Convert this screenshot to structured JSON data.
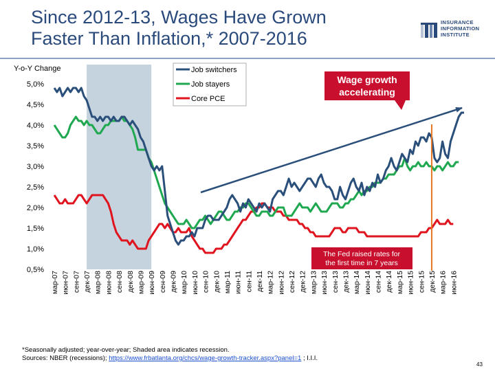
{
  "title_line1": "Since 2012-13, Wages Have Grown",
  "title_line2": "Faster Than Inflation,* 2007-2016",
  "logo": {
    "line1": "INSURANCE",
    "line2": "INFORMATION",
    "line3": "INSTITUTE",
    "color": "#2a4a7c"
  },
  "callouts": {
    "wage": {
      "line1": "Wage growth",
      "line2": "accelerating",
      "bg": "#c8102e"
    },
    "fed": {
      "line1": "The Fed raised rates for",
      "line2": "the first time in 7 years",
      "bg": "#c8102e"
    }
  },
  "footnote": {
    "text": "*Seasonally adjusted; year-over-year; Shaded area indicates recession.",
    "sources_prefix": "Sources: NBER (recessions); ",
    "link": "https://www.frbatlanta.org/chcs/wage-growth-tracker.aspx?panel=1",
    "sources_suffix": " ; I.I.I."
  },
  "page_number": "43",
  "chart_data": {
    "type": "line",
    "ylabel": "Y-o-Y Change",
    "ylim": [
      0.5,
      5.0
    ],
    "yticks": [
      0.5,
      1.0,
      1.5,
      2.0,
      2.5,
      3.0,
      3.5,
      4.0,
      4.5,
      5.0
    ],
    "ytick_labels": [
      "0,5%",
      "1,0%",
      "1,5%",
      "2,0%",
      "2,5%",
      "3,0%",
      "3,5%",
      "4,0%",
      "4,5%",
      "5,0%"
    ],
    "x_start": "мар-07",
    "x_end": "июн-16",
    "x_tick_labels": [
      "мар-07",
      "июн-07",
      "сен-07",
      "дек-07",
      "мар-08",
      "июн-08",
      "сен-08",
      "дек-08",
      "мар-09",
      "июн-09",
      "сен-09",
      "дек-09",
      "мар-10",
      "июн-10",
      "сен-10",
      "дек-10",
      "мар-11",
      "июн-11",
      "сен-11",
      "дек-11",
      "мар-12",
      "июн-12",
      "сен-12",
      "дек-12",
      "мар-13",
      "июн-13",
      "сен-13",
      "дек-13",
      "мар-14",
      "июн-14",
      "сен-14",
      "дек-14",
      "мар-15",
      "июн-15",
      "сен-15",
      "дек-15",
      "мар-16",
      "июн-16"
    ],
    "recession": {
      "start": "дек-07",
      "end": "июн-09",
      "color": "#c5d3de"
    },
    "legend_position": "top-center",
    "series": [
      {
        "name": "Job switchers",
        "color": "#2a4f7a",
        "values": [
          4.9,
          4.8,
          4.9,
          4.7,
          4.8,
          4.9,
          4.8,
          4.9,
          4.9,
          4.8,
          4.9,
          4.7,
          4.6,
          4.4,
          4.2,
          4.2,
          4.1,
          4.2,
          4.1,
          4.2,
          4.2,
          4.1,
          4.2,
          4.1,
          4.1,
          4.2,
          4.2,
          4.1,
          4.0,
          4.1,
          4.0,
          3.9,
          3.7,
          3.6,
          3.4,
          3.2,
          3.0,
          2.9,
          3.0,
          2.9,
          3.0,
          2.4,
          1.8,
          1.6,
          1.4,
          1.2,
          1.1,
          1.2,
          1.2,
          1.3,
          1.3,
          1.4,
          1.3,
          1.5,
          1.5,
          1.5,
          1.7,
          1.8,
          1.8,
          1.7,
          1.7,
          1.7,
          1.8,
          1.9,
          2.0,
          2.2,
          2.3,
          2.2,
          2.1,
          1.9,
          2.1,
          2.0,
          2.2,
          2.1,
          2.0,
          1.9,
          2.1,
          2.0,
          2.1,
          2.0,
          1.9,
          2.2,
          2.3,
          2.4,
          2.4,
          2.3,
          2.5,
          2.7,
          2.5,
          2.6,
          2.5,
          2.4,
          2.5,
          2.6,
          2.7,
          2.7,
          2.6,
          2.5,
          2.7,
          2.8,
          2.6,
          2.5,
          2.5,
          2.4,
          2.2,
          2.2,
          2.5,
          2.3,
          2.2,
          2.4,
          2.6,
          2.7,
          2.5,
          2.4,
          2.6,
          2.3,
          2.5,
          2.4,
          2.6,
          2.5,
          2.8,
          2.6,
          2.7,
          2.9,
          3.0,
          3.2,
          3.0,
          2.9,
          3.1,
          3.3,
          3.2,
          3.1,
          3.4,
          3.3,
          3.6,
          3.5,
          3.7,
          3.7,
          3.6,
          3.8,
          3.7,
          3.2,
          3.1,
          3.2,
          3.6,
          3.3,
          3.2,
          3.6,
          3.8,
          4.0,
          4.2,
          4.3,
          4.3
        ]
      },
      {
        "name": "Job stayers",
        "color": "#1fa84f",
        "values": [
          4.0,
          3.9,
          3.8,
          3.7,
          3.7,
          3.8,
          4.0,
          4.1,
          4.2,
          4.1,
          4.1,
          4.0,
          4.1,
          4.0,
          4.0,
          3.9,
          3.8,
          3.8,
          3.9,
          4.0,
          4.0,
          4.1,
          4.1,
          4.1,
          4.1,
          4.2,
          4.1,
          4.1,
          4.0,
          3.9,
          3.7,
          3.4,
          3.4,
          3.4,
          3.4,
          3.2,
          3.1,
          2.9,
          2.7,
          2.5,
          2.3,
          2.1,
          2.0,
          1.9,
          1.8,
          1.7,
          1.6,
          1.6,
          1.6,
          1.7,
          1.6,
          1.5,
          1.5,
          1.6,
          1.7,
          1.7,
          1.8,
          1.7,
          1.6,
          1.7,
          1.8,
          1.9,
          1.9,
          1.8,
          1.7,
          1.7,
          1.8,
          1.9,
          1.9,
          2.0,
          2.0,
          2.1,
          2.1,
          2.0,
          1.9,
          1.8,
          1.8,
          1.9,
          1.9,
          1.9,
          1.8,
          1.8,
          1.9,
          2.0,
          2.0,
          2.0,
          1.8,
          1.8,
          1.8,
          1.9,
          2.0,
          2.1,
          2.0,
          2.0,
          2.0,
          1.9,
          2.0,
          2.1,
          2.0,
          1.9,
          1.9,
          1.9,
          2.0,
          2.1,
          2.1,
          2.1,
          2.0,
          2.0,
          2.1,
          2.1,
          2.2,
          2.2,
          2.3,
          2.4,
          2.3,
          2.4,
          2.4,
          2.5,
          2.5,
          2.6,
          2.6,
          2.6,
          2.7,
          2.7,
          2.8,
          2.8,
          2.8,
          2.9,
          3.0,
          3.0,
          3.2,
          3.0,
          2.9,
          3.0,
          3.0,
          3.1,
          3.0,
          3.0,
          3.1,
          3.0,
          3.0,
          2.9,
          3.0,
          3.0,
          2.9,
          3.0,
          3.1,
          3.0,
          3.0,
          3.1,
          3.1
        ]
      },
      {
        "name": "Core PCE",
        "color": "#e0141e",
        "values": [
          2.3,
          2.2,
          2.1,
          2.1,
          2.2,
          2.1,
          2.1,
          2.1,
          2.2,
          2.3,
          2.3,
          2.2,
          2.1,
          2.2,
          2.3,
          2.3,
          2.3,
          2.3,
          2.3,
          2.2,
          2.1,
          1.9,
          1.6,
          1.4,
          1.3,
          1.2,
          1.2,
          1.2,
          1.1,
          1.2,
          1.1,
          1.0,
          1.0,
          1.0,
          1.0,
          1.2,
          1.3,
          1.4,
          1.5,
          1.6,
          1.6,
          1.5,
          1.6,
          1.5,
          1.4,
          1.4,
          1.5,
          1.4,
          1.4,
          1.4,
          1.5,
          1.3,
          1.2,
          1.1,
          1.0,
          1.0,
          0.9,
          0.9,
          0.9,
          0.9,
          1.0,
          1.0,
          1.0,
          1.1,
          1.1,
          1.2,
          1.3,
          1.4,
          1.5,
          1.6,
          1.7,
          1.7,
          1.8,
          1.9,
          1.9,
          2.0,
          2.0,
          2.1,
          2.1,
          2.0,
          2.0,
          2.0,
          1.9,
          1.9,
          1.9,
          1.8,
          1.8,
          1.7,
          1.7,
          1.7,
          1.7,
          1.6,
          1.6,
          1.5,
          1.5,
          1.4,
          1.4,
          1.3,
          1.3,
          1.3,
          1.3,
          1.3,
          1.3,
          1.4,
          1.5,
          1.5,
          1.5,
          1.4,
          1.4,
          1.5,
          1.5,
          1.5,
          1.5,
          1.4,
          1.4,
          1.4,
          1.3,
          1.3,
          1.3,
          1.3,
          1.3,
          1.3,
          1.3,
          1.3,
          1.3,
          1.3,
          1.3,
          1.3,
          1.3,
          1.3,
          1.3,
          1.3,
          1.3,
          1.3,
          1.3,
          1.3,
          1.4,
          1.4,
          1.4,
          1.5,
          1.5,
          1.6,
          1.7,
          1.6,
          1.6,
          1.6,
          1.7,
          1.6,
          1.6
        ]
      }
    ],
    "annotations": [
      {
        "type": "trend-arrow",
        "color": "#2a4f7a"
      },
      {
        "type": "fed-rate-hike-line",
        "at": "дек-15",
        "color": "#e87722"
      }
    ]
  }
}
